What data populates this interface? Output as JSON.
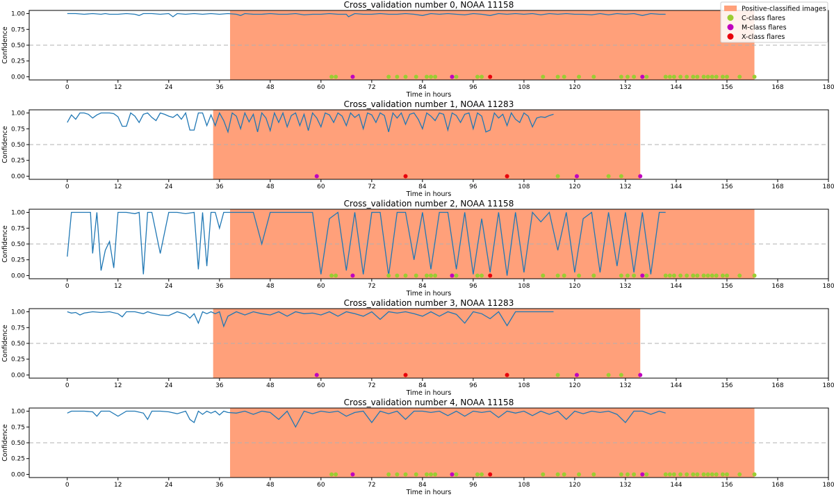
{
  "colors": {
    "positive_region": "#FFA07A",
    "confidence_line": "#1f77b4",
    "threshold_line": "#b0b0b0",
    "c_class": "#9ACD32",
    "m_class": "#BF00BF",
    "x_class": "#E8000B"
  },
  "legend": {
    "placement": "top-right",
    "entries": [
      {
        "key": "positive",
        "label": "Positive-classified images"
      },
      {
        "key": "c",
        "label": "C-class flares"
      },
      {
        "key": "m",
        "label": "M-class flares"
      },
      {
        "key": "x",
        "label": "X-class flares"
      }
    ]
  },
  "chart_data": [
    {
      "type": "line",
      "title": "Cross_validation number 0, NOAA 11158",
      "xlabel": "Time in hours",
      "ylabel": "Confidence",
      "xlim": [
        -9,
        180
      ],
      "ylim": [
        -0.05,
        1.05
      ],
      "xticks": [
        0,
        12,
        24,
        36,
        48,
        60,
        72,
        84,
        96,
        108,
        120,
        132,
        144,
        156,
        168,
        180
      ],
      "yticks": [
        "0.00",
        "0.25",
        "0.50",
        "0.75",
        "1.00"
      ],
      "threshold": 0.5,
      "positive_region": [
        38.5,
        162.5
      ],
      "series": {
        "x": [
          0,
          2,
          4,
          6,
          8,
          9,
          10,
          12,
          14,
          16,
          17,
          18,
          20,
          22,
          24,
          25,
          26,
          28,
          30,
          32,
          34,
          36,
          38,
          40,
          41,
          42,
          44,
          46,
          48,
          50,
          52,
          54,
          56,
          58,
          60,
          62,
          64,
          66,
          66.5,
          68,
          70,
          72,
          74,
          76,
          78,
          80,
          82,
          84,
          86,
          88,
          90,
          92,
          94,
          96,
          98,
          100,
          102,
          104,
          106,
          108,
          110,
          112,
          114,
          116,
          118,
          120,
          122,
          124,
          126,
          128,
          130,
          132,
          134,
          136,
          138,
          140,
          141.5
        ],
        "y": [
          1.0,
          1.0,
          0.99,
          1.0,
          0.99,
          1.0,
          0.99,
          0.99,
          1.0,
          0.99,
          0.97,
          1.0,
          1.0,
          0.99,
          1.0,
          0.95,
          1.0,
          0.99,
          1.0,
          0.99,
          1.0,
          0.99,
          1.0,
          0.99,
          0.97,
          1.0,
          0.99,
          0.99,
          1.0,
          0.99,
          0.99,
          1.0,
          0.98,
          0.99,
          0.99,
          1.0,
          0.99,
          0.99,
          0.95,
          1.0,
          0.99,
          0.99,
          1.0,
          0.99,
          0.99,
          1.0,
          0.99,
          0.97,
          1.0,
          0.99,
          1.0,
          0.99,
          0.98,
          1.0,
          0.99,
          0.97,
          1.0,
          0.99,
          1.0,
          0.99,
          1.0,
          0.98,
          1.0,
          0.99,
          1.0,
          0.99,
          0.99,
          0.98,
          1.0,
          0.98,
          1.0,
          0.99,
          1.0,
          0.97,
          1.0,
          0.99,
          0.99
        ]
      },
      "flares": {
        "c": [
          62.5,
          63.5,
          76,
          78,
          80,
          82.5,
          85,
          86,
          87,
          92,
          97,
          98,
          112.5,
          116,
          117.5,
          121,
          124.5,
          131,
          132.5,
          134,
          137,
          141.5,
          142.5,
          143.5,
          145,
          146.5,
          148,
          149,
          150.5,
          151.5,
          152.5,
          153.5,
          155,
          156,
          159,
          162.5
        ],
        "m": [
          67.5,
          91,
          136
        ],
        "x": [
          100
        ]
      }
    },
    {
      "type": "line",
      "title": "Cross_validation number 1, NOAA 11283",
      "xlabel": "Time in hours",
      "ylabel": "Confidence",
      "xlim": [
        -9,
        180
      ],
      "ylim": [
        -0.05,
        1.05
      ],
      "xticks": [
        0,
        12,
        24,
        36,
        48,
        60,
        72,
        84,
        96,
        108,
        120,
        132,
        144,
        156,
        168,
        180
      ],
      "yticks": [
        "0.00",
        "0.25",
        "0.50",
        "0.75",
        "1.00"
      ],
      "threshold": 0.5,
      "positive_region": [
        34.5,
        135.5
      ],
      "series": {
        "x": [
          0,
          1,
          2,
          3,
          4,
          5,
          6,
          7,
          8,
          9,
          10,
          11,
          12,
          13,
          14,
          15,
          16,
          17,
          18,
          19,
          20,
          21,
          22,
          23,
          24,
          25,
          26,
          27,
          28,
          29,
          30,
          31,
          32,
          33,
          34,
          35,
          36,
          37,
          38,
          39,
          40,
          41,
          42,
          43,
          44,
          45,
          46,
          47,
          48,
          49,
          50,
          51,
          52,
          53,
          54,
          55,
          56,
          57,
          58,
          59,
          60,
          61,
          62,
          63,
          64,
          65,
          66,
          67,
          68,
          69,
          70,
          71,
          72,
          73,
          74,
          75,
          76,
          77,
          78,
          79,
          80,
          81,
          82,
          83,
          84,
          85,
          86,
          87,
          88,
          89,
          90,
          91,
          92,
          93,
          94,
          95,
          96,
          97,
          98,
          99,
          100,
          101,
          102,
          103,
          104,
          105,
          106,
          107,
          108,
          109,
          110,
          111,
          112,
          113,
          114,
          115
        ],
        "y": [
          0.85,
          0.97,
          0.9,
          1.0,
          1.0,
          0.98,
          0.92,
          0.97,
          1.0,
          1.0,
          1.0,
          0.99,
          0.94,
          0.79,
          0.79,
          1.0,
          0.95,
          0.85,
          0.98,
          1.0,
          0.93,
          0.88,
          1.0,
          0.98,
          0.95,
          0.93,
          0.98,
          0.9,
          1.0,
          0.73,
          0.73,
          1.0,
          1.0,
          0.8,
          0.97,
          0.8,
          1.0,
          0.88,
          0.7,
          1.0,
          0.95,
          0.75,
          1.0,
          0.86,
          0.98,
          0.7,
          1.0,
          0.92,
          0.72,
          1.0,
          0.85,
          1.0,
          0.78,
          0.96,
          1.0,
          0.8,
          0.98,
          0.72,
          1.0,
          0.92,
          0.78,
          1.0,
          0.97,
          0.85,
          1.0,
          0.95,
          0.8,
          1.0,
          0.93,
          0.98,
          0.75,
          1.0,
          0.97,
          0.85,
          1.0,
          0.96,
          0.7,
          1.0,
          0.92,
          1.0,
          0.82,
          0.98,
          1.0,
          0.9,
          0.75,
          1.0,
          0.95,
          0.88,
          1.0,
          0.98,
          0.73,
          1.0,
          0.96,
          0.85,
          0.98,
          1.0,
          0.75,
          1.0,
          0.95,
          0.7,
          0.73,
          1.0,
          0.92,
          0.98,
          0.8,
          1.0,
          0.9,
          0.85,
          1.0,
          0.95,
          0.78,
          0.92,
          0.94,
          0.93,
          0.96,
          0.98
        ]
      },
      "flares": {
        "c": [
          116,
          128,
          131
        ],
        "m": [
          59,
          120.5,
          135.5
        ],
        "x": [
          80,
          104
        ]
      }
    },
    {
      "type": "line",
      "title": "Cross_validation number 2, NOAA 11158",
      "xlabel": "Time in hours",
      "ylabel": "Confidence",
      "xlim": [
        -9,
        180
      ],
      "ylim": [
        -0.05,
        1.05
      ],
      "xticks": [
        0,
        12,
        24,
        36,
        48,
        60,
        72,
        84,
        96,
        108,
        120,
        132,
        144,
        156,
        168,
        180
      ],
      "yticks": [
        "0.00",
        "0.25",
        "0.50",
        "0.75",
        "1.00"
      ],
      "threshold": 0.5,
      "positive_region": [
        38.5,
        162.5
      ],
      "series": {
        "x": [
          0,
          1,
          3,
          4.5,
          5.5,
          6,
          7,
          8,
          9,
          10,
          11,
          12,
          14,
          16,
          17,
          18,
          19,
          20,
          22,
          24,
          26,
          28,
          30,
          31,
          32,
          33,
          34,
          35,
          36,
          37,
          38,
          40,
          41,
          42,
          44,
          46,
          48,
          50,
          52,
          54,
          56,
          58,
          60,
          62,
          64,
          66,
          68,
          70,
          72,
          74,
          76,
          78,
          80,
          82,
          84,
          86,
          88,
          90,
          92,
          94,
          96,
          98,
          100,
          102,
          104,
          106,
          108,
          110,
          112,
          114,
          116,
          118,
          120,
          122,
          124,
          126,
          128,
          130,
          132,
          134,
          136,
          138,
          140,
          141.5
        ],
        "y": [
          0.3,
          1.0,
          1.0,
          1.0,
          1.0,
          0.35,
          1.0,
          0.08,
          0.4,
          0.54,
          0.12,
          1.0,
          1.0,
          0.98,
          1.0,
          0.02,
          1.0,
          1.0,
          0.35,
          1.0,
          1.0,
          0.98,
          1.0,
          0.1,
          1.0,
          0.15,
          1.0,
          1.0,
          0.75,
          1.0,
          1.0,
          1.0,
          1.0,
          1.0,
          1.0,
          0.5,
          1.0,
          1.0,
          1.0,
          1.0,
          1.0,
          1.0,
          0.02,
          0.9,
          1.0,
          0.08,
          1.0,
          0.02,
          1.0,
          1.0,
          0.0,
          1.0,
          1.0,
          0.25,
          1.0,
          0.1,
          1.0,
          1.0,
          0.1,
          1.0,
          0.02,
          0.9,
          0.05,
          1.0,
          0.0,
          1.0,
          0.05,
          1.0,
          0.85,
          1.0,
          0.4,
          1.0,
          0.05,
          0.9,
          1.0,
          0.05,
          1.0,
          0.15,
          1.0,
          0.05,
          1.0,
          0.02,
          1.0,
          1.0
        ]
      },
      "flares": {
        "c": [
          62.5,
          63.5,
          76,
          78,
          80,
          82.5,
          85,
          86,
          87,
          92,
          97,
          98,
          112.5,
          116,
          117.5,
          121,
          124.5,
          131,
          132.5,
          134,
          137,
          141.5,
          142.5,
          143.5,
          145,
          146.5,
          148,
          149,
          150.5,
          151.5,
          152.5,
          153.5,
          155,
          156,
          159,
          162.5
        ],
        "m": [
          67.5,
          91,
          136
        ],
        "x": [
          100
        ]
      }
    },
    {
      "type": "line",
      "title": "Cross_validation number 3, NOAA 11283",
      "xlabel": "Time in hours",
      "ylabel": "Confidence",
      "xlim": [
        -9,
        180
      ],
      "ylim": [
        -0.05,
        1.05
      ],
      "xticks": [
        0,
        12,
        24,
        36,
        48,
        60,
        72,
        84,
        96,
        108,
        120,
        132,
        144,
        156,
        168,
        180
      ],
      "yticks": [
        "0.00",
        "0.25",
        "0.50",
        "0.75",
        "1.00"
      ],
      "threshold": 0.5,
      "positive_region": [
        34.5,
        135.5
      ],
      "series": {
        "x": [
          0,
          1,
          2,
          3,
          4,
          6,
          8,
          10,
          12,
          13,
          14,
          16,
          18,
          19,
          20,
          22,
          24,
          26,
          28,
          29,
          30,
          31,
          32,
          33,
          34,
          35,
          36,
          37,
          38,
          40,
          42,
          44,
          46,
          48,
          50,
          52,
          54,
          56,
          58,
          60,
          62,
          64,
          66,
          68,
          70,
          72,
          74,
          76,
          78,
          80,
          82,
          84,
          86,
          88,
          90,
          92,
          94,
          96,
          98,
          100,
          102,
          104,
          106,
          108,
          110,
          112,
          114,
          115
        ],
        "y": [
          1.0,
          0.98,
          0.99,
          0.95,
          0.98,
          1.0,
          0.99,
          1.0,
          0.97,
          0.92,
          1.0,
          1.0,
          0.97,
          1.0,
          0.98,
          0.95,
          0.94,
          1.0,
          0.96,
          0.9,
          0.97,
          0.82,
          1.0,
          0.97,
          1.0,
          0.97,
          1.0,
          0.77,
          0.93,
          1.0,
          0.95,
          1.0,
          0.97,
          0.95,
          1.0,
          0.93,
          1.0,
          0.97,
          0.98,
          0.95,
          1.0,
          0.93,
          1.0,
          0.97,
          0.93,
          1.0,
          0.88,
          1.0,
          0.98,
          1.0,
          0.97,
          0.93,
          1.0,
          0.93,
          1.0,
          0.96,
          0.82,
          1.0,
          0.97,
          0.89,
          1.0,
          0.78,
          1.0,
          1.0,
          1.0,
          1.0,
          1.0,
          1.0
        ]
      },
      "flares": {
        "c": [
          116,
          128,
          131
        ],
        "m": [
          59,
          120.5,
          135.5
        ],
        "x": [
          80,
          104
        ]
      }
    },
    {
      "type": "line",
      "title": "Cross_validation number 4, NOAA 11158",
      "xlabel": "Time in hours",
      "ylabel": "Confidence",
      "xlim": [
        -9,
        180
      ],
      "ylim": [
        -0.05,
        1.05
      ],
      "xticks": [
        0,
        12,
        24,
        36,
        48,
        60,
        72,
        84,
        96,
        108,
        120,
        132,
        144,
        156,
        168,
        180
      ],
      "yticks": [
        "0.00",
        "0.25",
        "0.50",
        "0.75",
        "1.00"
      ],
      "threshold": 0.5,
      "positive_region": [
        38.5,
        162.5
      ],
      "series": {
        "x": [
          0,
          1,
          2,
          4,
          6,
          7,
          8,
          10,
          12,
          14,
          16,
          18,
          19,
          20,
          22,
          24,
          26,
          28,
          29,
          30,
          31,
          32,
          33,
          34,
          35,
          36,
          37,
          38,
          40,
          42,
          44,
          46,
          48,
          50,
          52,
          54,
          56,
          58,
          60,
          62,
          64,
          66,
          68,
          70,
          72,
          74,
          76,
          78,
          80,
          82,
          84,
          86,
          88,
          90,
          92,
          94,
          96,
          98,
          100,
          102,
          104,
          106,
          108,
          110,
          112,
          114,
          116,
          118,
          120,
          122,
          124,
          126,
          128,
          130,
          132,
          134,
          136,
          138,
          140,
          141.5
        ],
        "y": [
          0.97,
          1.0,
          1.0,
          1.0,
          0.99,
          0.92,
          1.0,
          1.0,
          0.92,
          1.0,
          1.0,
          0.97,
          0.87,
          1.0,
          1.0,
          0.99,
          0.96,
          1.0,
          0.87,
          0.82,
          1.0,
          0.95,
          1.0,
          0.97,
          1.0,
          0.94,
          1.0,
          0.98,
          0.97,
          1.0,
          0.95,
          1.0,
          0.98,
          0.87,
          1.0,
          0.75,
          1.0,
          0.96,
          1.0,
          0.98,
          1.0,
          0.92,
          0.98,
          1.0,
          0.82,
          1.0,
          0.96,
          1.0,
          0.87,
          1.0,
          1.0,
          0.98,
          1.0,
          0.93,
          1.0,
          0.92,
          1.0,
          0.98,
          1.0,
          0.9,
          1.0,
          0.97,
          1.0,
          0.93,
          1.0,
          0.95,
          1.0,
          0.87,
          1.0,
          0.96,
          1.0,
          0.98,
          1.0,
          0.95,
          0.82,
          1.0,
          1.0,
          0.95,
          1.0,
          0.97
        ]
      },
      "flares": {
        "c": [
          62.5,
          63.5,
          76,
          78,
          80,
          82.5,
          85,
          86,
          87,
          92,
          97,
          98,
          112.5,
          116,
          117.5,
          121,
          124.5,
          131,
          132.5,
          134,
          137,
          141.5,
          142.5,
          143.5,
          145,
          146.5,
          148,
          149,
          150.5,
          151.5,
          152.5,
          153.5,
          155,
          156,
          159,
          162.5
        ],
        "m": [
          67.5,
          91,
          136
        ],
        "x": [
          100
        ]
      }
    }
  ]
}
